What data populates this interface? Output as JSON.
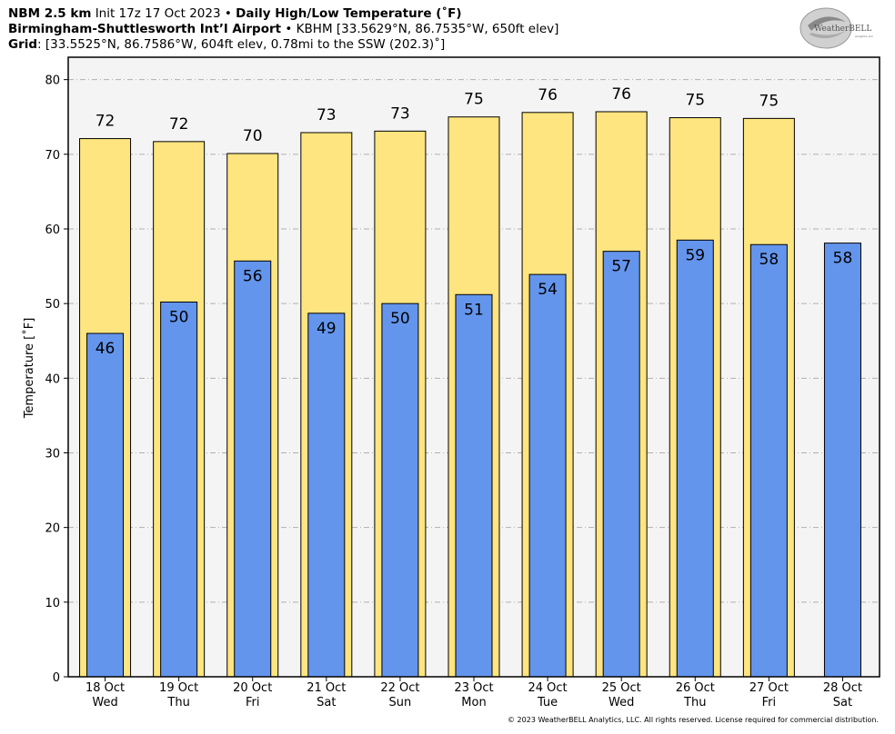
{
  "header": {
    "line1": {
      "model": "NBM 2.5 km",
      "init": "Init 17z 17 Oct 2023",
      "sep": "•",
      "product": "Daily High/Low Temperature (˚F)"
    },
    "line2": {
      "station": "Birmingham-Shuttlesworth Int’l Airport",
      "sep": "•",
      "info": "KBHM [33.5629°N, 86.7535°W, 650ft elev]"
    },
    "line3": {
      "label": "Grid",
      "info": ": [33.5525°N, 86.7586°W, 604ft elev, 0.78mi to the SSW (202.3)˚]"
    }
  },
  "logo": {
    "text": "WeatherBELL",
    "sub": "Analytics LLC"
  },
  "footer": "© 2023 WeatherBELL Analytics, LLC. All rights reserved. License required for commercial distribution.",
  "chart_data": {
    "type": "bar",
    "ylabel": "Temperature [˚F]",
    "xlabel": "",
    "ylim": [
      0,
      83
    ],
    "yticks": [
      0,
      10,
      20,
      30,
      40,
      50,
      60,
      70,
      80
    ],
    "grid": true,
    "categories": [
      [
        "18 Oct",
        "Wed"
      ],
      [
        "19 Oct",
        "Thu"
      ],
      [
        "20 Oct",
        "Fri"
      ],
      [
        "21 Oct",
        "Sat"
      ],
      [
        "22 Oct",
        "Sun"
      ],
      [
        "23 Oct",
        "Mon"
      ],
      [
        "24 Oct",
        "Tue"
      ],
      [
        "25 Oct",
        "Wed"
      ],
      [
        "26 Oct",
        "Thu"
      ],
      [
        "27 Oct",
        "Fri"
      ],
      [
        "28 Oct",
        "Sat"
      ]
    ],
    "series": [
      {
        "values": [
          72.1,
          71.7,
          70.1,
          72.9,
          73.1,
          75.0,
          75.6,
          75.7,
          74.9,
          74.8,
          null
        ],
        "labels": [
          "72",
          "72",
          "70",
          "73",
          "73",
          "75",
          "76",
          "76",
          "75",
          "75",
          ""
        ],
        "color": "#ffe57f"
      },
      {
        "values": [
          46.0,
          50.2,
          55.7,
          48.7,
          50.0,
          51.2,
          53.9,
          57.0,
          58.5,
          57.9,
          58.1
        ],
        "labels": [
          "46",
          "50",
          "56",
          "49",
          "50",
          "51",
          "54",
          "57",
          "59",
          "58",
          "58"
        ],
        "color": "#6495ed"
      }
    ],
    "plot_background": "#f4f4f4"
  }
}
